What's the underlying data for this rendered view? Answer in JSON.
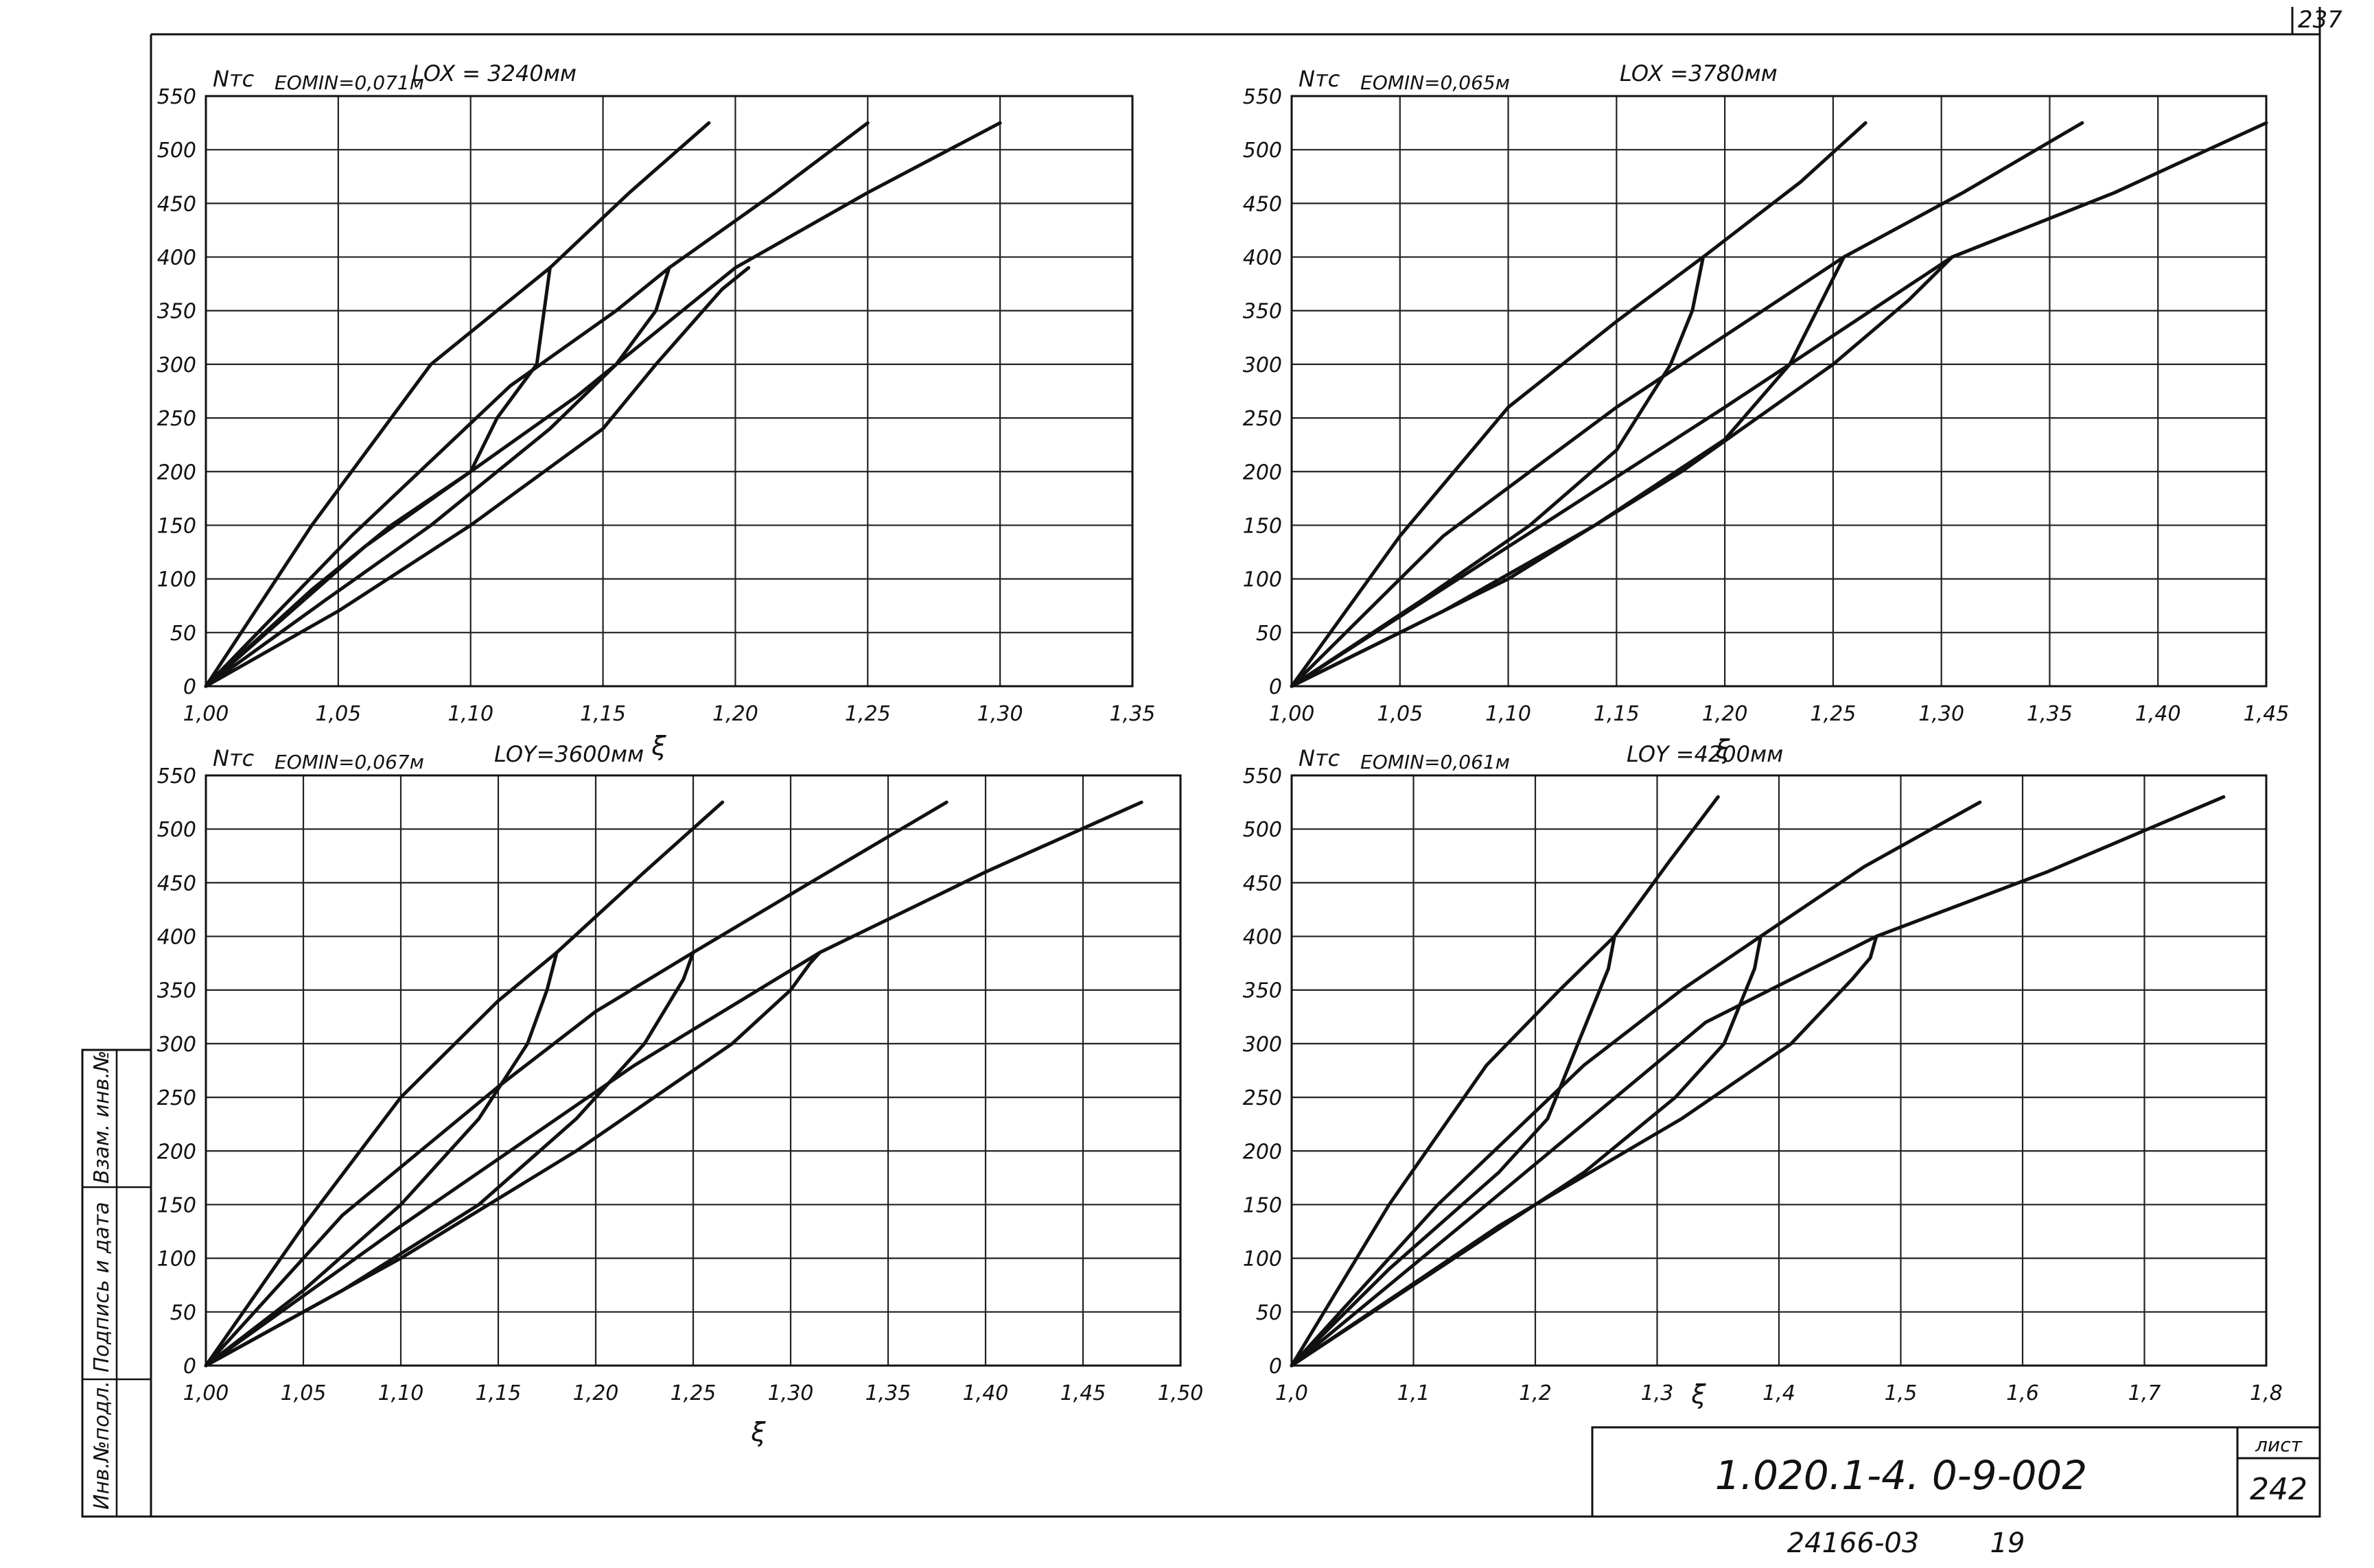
{
  "sheet": {
    "corner_number": "237",
    "title_code": "1.020.1-4.  0-9-002",
    "sheet_label": "лист",
    "sheet_number": "242",
    "footer_number": "24166-03",
    "footer_copy": "19",
    "side_stamp": [
      "Инв.№подл.",
      "Подпись и дата",
      "Взам. инв.№"
    ]
  },
  "chart_data": [
    {
      "type": "line",
      "y_unit": "Nтс",
      "eomin": "EOMIN=0,071м",
      "length": "LOX = 3240мм",
      "xlabel": "ξ",
      "xlim": [
        1.0,
        1.35
      ],
      "ylim": [
        0,
        550
      ],
      "x_ticks": [
        "1,00",
        "1,05",
        "1,10",
        "1,15",
        "1,20",
        "1,25",
        "1,30",
        "1,35"
      ],
      "x_tick_values": [
        1.0,
        1.05,
        1.1,
        1.15,
        1.2,
        1.25,
        1.3,
        1.35
      ],
      "y_ticks": [
        "0",
        "50",
        "100",
        "150",
        "200",
        "250",
        "300",
        "350",
        "400",
        "450",
        "500",
        "550"
      ],
      "y_tick_values": [
        0,
        50,
        100,
        150,
        200,
        250,
        300,
        350,
        400,
        450,
        500,
        550
      ],
      "grid": true,
      "series": [
        {
          "x": [
            1.0,
            1.04,
            1.085,
            1.11,
            1.13,
            1.16,
            1.19
          ],
          "y": [
            0,
            150,
            300,
            350,
            390,
            460,
            525
          ]
        },
        {
          "x": [
            1.0,
            1.055,
            1.115,
            1.155,
            1.175,
            1.215,
            1.25
          ],
          "y": [
            0,
            140,
            280,
            350,
            390,
            460,
            525
          ]
        },
        {
          "x": [
            1.0,
            1.06,
            1.14,
            1.2,
            1.25,
            1.3
          ],
          "y": [
            0,
            130,
            270,
            390,
            460,
            525
          ]
        },
        {
          "x": [
            1.0,
            1.04,
            1.07,
            1.1,
            1.11,
            1.125,
            1.13
          ],
          "y": [
            0,
            90,
            150,
            200,
            250,
            300,
            390
          ]
        },
        {
          "x": [
            1.0,
            1.045,
            1.085,
            1.13,
            1.155,
            1.17,
            1.175
          ],
          "y": [
            0,
            80,
            150,
            240,
            300,
            350,
            390
          ]
        },
        {
          "x": [
            1.0,
            1.05,
            1.1,
            1.15,
            1.17,
            1.195,
            1.205
          ],
          "y": [
            0,
            70,
            150,
            240,
            300,
            370,
            390
          ]
        }
      ]
    },
    {
      "type": "line",
      "y_unit": "Nтс",
      "eomin": "EOMIN=0,065м",
      "length": "LOX =3780мм",
      "xlabel": "ξ",
      "xlim": [
        1.0,
        1.45
      ],
      "ylim": [
        0,
        550
      ],
      "x_ticks": [
        "1,00",
        "1,05",
        "1,10",
        "1,15",
        "1,20",
        "1,25",
        "1,30",
        "1,35",
        "1,40",
        "1,45"
      ],
      "x_tick_values": [
        1.0,
        1.05,
        1.1,
        1.15,
        1.2,
        1.25,
        1.3,
        1.35,
        1.4,
        1.45
      ],
      "y_ticks": [
        "0",
        "50",
        "100",
        "150",
        "200",
        "250",
        "300",
        "350",
        "400",
        "450",
        "500",
        "550"
      ],
      "y_tick_values": [
        0,
        50,
        100,
        150,
        200,
        250,
        300,
        350,
        400,
        450,
        500,
        550
      ],
      "grid": true,
      "series": [
        {
          "x": [
            1.0,
            1.05,
            1.1,
            1.15,
            1.19,
            1.235,
            1.265
          ],
          "y": [
            0,
            140,
            260,
            340,
            400,
            470,
            525
          ]
        },
        {
          "x": [
            1.0,
            1.07,
            1.15,
            1.21,
            1.255,
            1.31,
            1.365
          ],
          "y": [
            0,
            140,
            260,
            340,
            400,
            460,
            525
          ]
        },
        {
          "x": [
            1.0,
            1.1,
            1.2,
            1.305,
            1.38,
            1.45
          ],
          "y": [
            0,
            130,
            260,
            400,
            460,
            525
          ]
        },
        {
          "x": [
            1.0,
            1.06,
            1.11,
            1.15,
            1.175,
            1.185,
            1.19
          ],
          "y": [
            0,
            80,
            150,
            220,
            300,
            350,
            400
          ]
        },
        {
          "x": [
            1.0,
            1.07,
            1.14,
            1.2,
            1.23,
            1.245,
            1.255
          ],
          "y": [
            0,
            70,
            150,
            230,
            300,
            360,
            400
          ]
        },
        {
          "x": [
            1.0,
            1.1,
            1.18,
            1.25,
            1.285,
            1.295,
            1.305
          ],
          "y": [
            0,
            100,
            200,
            300,
            360,
            380,
            400
          ]
        }
      ]
    },
    {
      "type": "line",
      "y_unit": "Nтс",
      "eomin": "EOMIN=0,067м",
      "length": "LOY=3600мм",
      "xlabel": "ξ",
      "xlim": [
        1.0,
        1.5
      ],
      "ylim": [
        0,
        550
      ],
      "x_ticks": [
        "1,00",
        "1,05",
        "1,10",
        "1,15",
        "1,20",
        "1,25",
        "1,30",
        "1,35",
        "1,40",
        "1,45",
        "1,50"
      ],
      "x_tick_values": [
        1.0,
        1.05,
        1.1,
        1.15,
        1.2,
        1.25,
        1.3,
        1.35,
        1.4,
        1.45,
        1.5
      ],
      "y_ticks": [
        "0",
        "50",
        "100",
        "150",
        "200",
        "250",
        "300",
        "350",
        "400",
        "450",
        "500",
        "550"
      ],
      "y_tick_values": [
        0,
        50,
        100,
        150,
        200,
        250,
        300,
        350,
        400,
        450,
        500,
        550
      ],
      "grid": true,
      "series": [
        {
          "x": [
            1.0,
            1.05,
            1.1,
            1.15,
            1.18,
            1.225,
            1.265
          ],
          "y": [
            0,
            130,
            250,
            340,
            385,
            460,
            525
          ]
        },
        {
          "x": [
            1.0,
            1.07,
            1.15,
            1.2,
            1.25,
            1.31,
            1.38
          ],
          "y": [
            0,
            140,
            260,
            330,
            385,
            450,
            525
          ]
        },
        {
          "x": [
            1.0,
            1.1,
            1.22,
            1.315,
            1.4,
            1.48
          ],
          "y": [
            0,
            130,
            280,
            385,
            460,
            525
          ]
        },
        {
          "x": [
            1.0,
            1.05,
            1.1,
            1.14,
            1.165,
            1.175,
            1.18
          ],
          "y": [
            0,
            70,
            150,
            230,
            300,
            350,
            385
          ]
        },
        {
          "x": [
            1.0,
            1.07,
            1.14,
            1.19,
            1.225,
            1.245,
            1.25
          ],
          "y": [
            0,
            70,
            150,
            230,
            300,
            360,
            385
          ]
        },
        {
          "x": [
            1.0,
            1.1,
            1.19,
            1.27,
            1.3,
            1.31,
            1.315
          ],
          "y": [
            0,
            100,
            200,
            300,
            350,
            375,
            385
          ]
        }
      ]
    },
    {
      "type": "line",
      "y_unit": "Nтс",
      "eomin": "EOMIN=0,061м",
      "length": "LOY =4200мм",
      "xlabel": "ξ",
      "xlim": [
        1.0,
        1.8
      ],
      "ylim": [
        0,
        550
      ],
      "x_ticks": [
        "1,0",
        "1,1",
        "1,2",
        "1,3",
        "1,4",
        "1,5",
        "1,6",
        "1,7",
        "1,8"
      ],
      "x_tick_values": [
        1.0,
        1.1,
        1.2,
        1.3,
        1.4,
        1.5,
        1.6,
        1.7,
        1.8
      ],
      "y_ticks": [
        "0",
        "50",
        "100",
        "150",
        "200",
        "250",
        "300",
        "350",
        "400",
        "450",
        "500",
        "550"
      ],
      "y_tick_values": [
        0,
        50,
        100,
        150,
        200,
        250,
        300,
        350,
        400,
        450,
        500,
        550
      ],
      "grid": true,
      "series": [
        {
          "x": [
            1.0,
            1.08,
            1.16,
            1.22,
            1.265,
            1.31,
            1.35
          ],
          "y": [
            0,
            150,
            280,
            350,
            400,
            470,
            530
          ]
        },
        {
          "x": [
            1.0,
            1.12,
            1.24,
            1.32,
            1.385,
            1.47,
            1.565
          ],
          "y": [
            0,
            150,
            280,
            350,
            400,
            465,
            525
          ]
        },
        {
          "x": [
            1.0,
            1.16,
            1.34,
            1.48,
            1.62,
            1.765
          ],
          "y": [
            0,
            150,
            320,
            400,
            460,
            530
          ]
        },
        {
          "x": [
            1.0,
            1.08,
            1.17,
            1.21,
            1.235,
            1.26,
            1.265
          ],
          "y": [
            0,
            90,
            180,
            230,
            300,
            370,
            400
          ]
        },
        {
          "x": [
            1.0,
            1.12,
            1.24,
            1.315,
            1.355,
            1.38,
            1.385
          ],
          "y": [
            0,
            90,
            180,
            250,
            300,
            370,
            400
          ]
        },
        {
          "x": [
            1.0,
            1.17,
            1.32,
            1.41,
            1.46,
            1.475,
            1.48
          ],
          "y": [
            0,
            130,
            230,
            300,
            360,
            380,
            400
          ]
        }
      ]
    }
  ]
}
